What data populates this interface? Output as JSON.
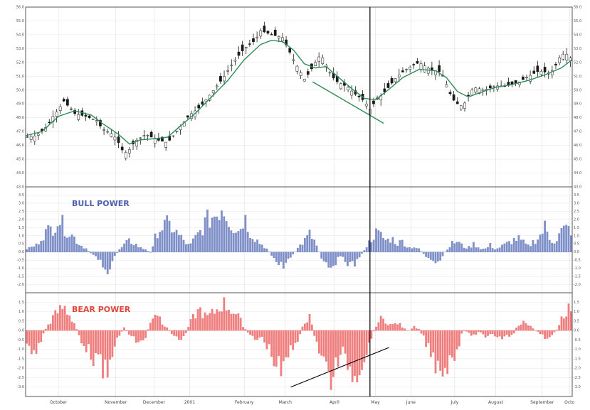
{
  "colors": {
    "background": "#ffffff",
    "frame": "#555555",
    "grid": "#dddddd",
    "candle": "#1a1a1a",
    "moving_average": "#2e8b57",
    "bull": "#7f8fc8",
    "bear": "#ef7e7e",
    "bull_label": "#4f5fb0",
    "bear_label": "#e0473b",
    "cursor": "#000000",
    "trendline_price": "#2e8b57",
    "trendline_bear": "#000000"
  },
  "chart_data": [
    {
      "type": "candlestick",
      "panel": "price",
      "title": "",
      "months": [
        "October",
        "November",
        "December",
        "2001",
        "February",
        "March",
        "April",
        "May",
        "June",
        "July",
        "August",
        "September",
        "Octo"
      ],
      "x_domain": [
        0,
        100
      ],
      "month_positions": [
        6,
        16.5,
        23.5,
        30,
        40,
        47.5,
        56.5,
        64,
        70.5,
        78.5,
        86,
        94.5,
        99.5
      ],
      "ylim": [
        43,
        56
      ],
      "y_ticks": [
        43,
        44,
        45,
        46,
        47,
        48,
        49,
        50,
        51,
        52,
        53,
        54,
        55,
        56
      ],
      "y_tick_labels": [
        "43.0",
        "44.0",
        "45.0",
        "46.0",
        "47.0",
        "48.0",
        "49.0",
        "50.0",
        "51.0",
        "52.0",
        "53.0",
        "54.0",
        "55.0",
        "56.0"
      ],
      "close_path": [
        [
          0,
          46.6
        ],
        [
          2,
          46.7
        ],
        [
          4,
          47.4
        ],
        [
          5,
          48.1
        ],
        [
          6,
          48.6
        ],
        [
          7,
          49.2
        ],
        [
          9,
          48.3
        ],
        [
          11,
          48.1
        ],
        [
          13,
          47.8
        ],
        [
          14,
          47.2
        ],
        [
          16,
          46.8
        ],
        [
          17,
          46.2
        ],
        [
          18,
          45.4
        ],
        [
          19,
          45.7
        ],
        [
          20,
          46.3
        ],
        [
          22,
          46.8
        ],
        [
          24,
          46.4
        ],
        [
          26,
          46.2
        ],
        [
          28,
          47.2
        ],
        [
          30,
          48.2
        ],
        [
          32,
          48.8
        ],
        [
          34,
          49.8
        ],
        [
          36,
          50.8
        ],
        [
          38,
          52.0
        ],
        [
          40,
          53.0
        ],
        [
          42,
          53.6
        ],
        [
          43,
          54.3
        ],
        [
          45,
          54.0
        ],
        [
          47,
          53.8
        ],
        [
          49,
          52.2
        ],
        [
          51,
          50.8
        ],
        [
          52,
          51.3
        ],
        [
          53,
          52.0
        ],
        [
          54,
          52.6
        ],
        [
          55,
          51.8
        ],
        [
          56,
          51.0
        ],
        [
          57,
          50.6
        ],
        [
          59,
          50.2
        ],
        [
          60,
          49.8
        ],
        [
          62,
          49.2
        ],
        [
          63,
          48.6
        ],
        [
          64,
          49.2
        ],
        [
          66,
          50.0
        ],
        [
          68,
          51.0
        ],
        [
          70,
          51.6
        ],
        [
          72,
          52.0
        ],
        [
          74,
          51.5
        ],
        [
          76,
          51.3
        ],
        [
          77,
          50.4
        ],
        [
          78,
          49.4
        ],
        [
          79,
          49.0
        ],
        [
          80,
          48.8
        ],
        [
          81,
          49.6
        ],
        [
          82,
          50.2
        ],
        [
          84,
          50.0
        ],
        [
          86,
          50.3
        ],
        [
          88,
          50.3
        ],
        [
          90,
          50.5
        ],
        [
          92,
          51.0
        ],
        [
          94,
          51.4
        ],
        [
          96,
          51.2
        ],
        [
          97,
          51.8
        ],
        [
          98,
          52.6
        ],
        [
          99,
          52.6
        ],
        [
          100,
          52.2
        ]
      ],
      "ma_path": [
        [
          0,
          46.7
        ],
        [
          3,
          47.0
        ],
        [
          6,
          48.1
        ],
        [
          9,
          48.5
        ],
        [
          12,
          48.2
        ],
        [
          14,
          47.6
        ],
        [
          17,
          46.8
        ],
        [
          19,
          46.1
        ],
        [
          21,
          46.4
        ],
        [
          24,
          46.5
        ],
        [
          26,
          46.6
        ],
        [
          28,
          47.3
        ],
        [
          31,
          48.3
        ],
        [
          34,
          49.5
        ],
        [
          37,
          50.7
        ],
        [
          40,
          52.2
        ],
        [
          43,
          53.3
        ],
        [
          45,
          53.6
        ],
        [
          47,
          53.5
        ],
        [
          49,
          52.9
        ],
        [
          51,
          51.9
        ],
        [
          53,
          51.6
        ],
        [
          55,
          51.7
        ],
        [
          57,
          51.0
        ],
        [
          60,
          50.0
        ],
        [
          62,
          49.4
        ],
        [
          64,
          49.3
        ],
        [
          66,
          49.9
        ],
        [
          69,
          50.9
        ],
        [
          72,
          51.5
        ],
        [
          75,
          51.4
        ],
        [
          77,
          50.9
        ],
        [
          79,
          49.9
        ],
        [
          81,
          49.5
        ],
        [
          83,
          49.8
        ],
        [
          86,
          50.2
        ],
        [
          89,
          50.4
        ],
        [
          92,
          50.7
        ],
        [
          95,
          51.1
        ],
        [
          98,
          51.6
        ],
        [
          100,
          52.2
        ]
      ],
      "trendlines": [
        [
          [
            52.5,
            50.6
          ],
          [
            65.5,
            47.6
          ]
        ]
      ],
      "cursor_x": 63
    },
    {
      "type": "bar",
      "panel": "indicator",
      "series_name": "BULL POWER",
      "ylim": [
        -2.5,
        4.0
      ],
      "zero": 0,
      "y_ticks": [
        -2.0,
        -1.5,
        -1.0,
        -0.5,
        0.0,
        0.5,
        1.0,
        1.5,
        2.0,
        2.5,
        3.0,
        3.5
      ],
      "y_tick_labels": [
        "-2.0",
        "-1.5",
        "-1.0",
        "-0.5",
        "0.0",
        "0.5",
        "1.0",
        "1.5",
        "2.0",
        "2.5",
        "3.0",
        "3.5"
      ],
      "x_domain": [
        0,
        100
      ],
      "profile": [
        [
          0,
          0.2
        ],
        [
          2,
          0.5
        ],
        [
          3,
          1.2
        ],
        [
          5,
          1.8
        ],
        [
          6,
          2.5
        ],
        [
          7,
          1.8
        ],
        [
          8,
          1.4
        ],
        [
          9,
          1.0
        ],
        [
          10,
          0.5
        ],
        [
          11,
          0.3
        ],
        [
          12,
          -0.1
        ],
        [
          13,
          -0.3
        ],
        [
          14,
          -0.8
        ],
        [
          15,
          -1.4
        ],
        [
          15.5,
          -2.0
        ],
        [
          16,
          -0.5
        ],
        [
          17,
          0.1
        ],
        [
          18,
          0.5
        ],
        [
          19,
          0.8
        ],
        [
          20,
          0.6
        ],
        [
          21,
          0.3
        ],
        [
          22,
          0.2
        ],
        [
          23,
          -0.1
        ],
        [
          24,
          1.5
        ],
        [
          25,
          1.8
        ],
        [
          26,
          2.0
        ],
        [
          27,
          1.7
        ],
        [
          28,
          1.2
        ],
        [
          29,
          0.8
        ],
        [
          30,
          0.4
        ],
        [
          31,
          1.0
        ],
        [
          32,
          1.5
        ],
        [
          33,
          2.2
        ],
        [
          34,
          2.5
        ],
        [
          35,
          2.8
        ],
        [
          36,
          3.4
        ],
        [
          37,
          2.5
        ],
        [
          38,
          1.8
        ],
        [
          39,
          1.5
        ],
        [
          40,
          2.6
        ],
        [
          41,
          1.5
        ],
        [
          42,
          1.0
        ],
        [
          43,
          0.6
        ],
        [
          44,
          0.3
        ],
        [
          45,
          -0.2
        ],
        [
          46,
          -0.8
        ],
        [
          47,
          -1.0
        ],
        [
          48,
          -0.6
        ],
        [
          49,
          -0.2
        ],
        [
          50,
          0.4
        ],
        [
          51,
          0.8
        ],
        [
          52,
          1.3
        ],
        [
          53,
          0.7
        ],
        [
          54,
          -0.3
        ],
        [
          55,
          -0.8
        ],
        [
          56,
          -1.0
        ],
        [
          57,
          -0.6
        ],
        [
          58,
          -0.3
        ],
        [
          59,
          -0.8
        ],
        [
          60,
          -1.0
        ],
        [
          61,
          -0.4
        ],
        [
          62,
          0.2
        ],
        [
          63,
          0.8
        ],
        [
          64,
          1.4
        ],
        [
          65,
          1.2
        ],
        [
          66,
          0.8
        ],
        [
          67,
          1.0
        ],
        [
          68,
          0.6
        ],
        [
          69,
          0.8
        ],
        [
          70,
          0.3
        ],
        [
          71,
          0.4
        ],
        [
          72,
          0.2
        ],
        [
          73,
          -0.2
        ],
        [
          74,
          -0.6
        ],
        [
          75,
          -1.1
        ],
        [
          76,
          -0.6
        ],
        [
          77,
          0.2
        ],
        [
          78,
          0.6
        ],
        [
          79,
          0.8
        ],
        [
          80,
          0.4
        ],
        [
          81,
          0.3
        ],
        [
          82,
          0.6
        ],
        [
          83,
          0.3
        ],
        [
          84,
          0.2
        ],
        [
          85,
          0.5
        ],
        [
          86,
          0.2
        ],
        [
          87,
          0.4
        ],
        [
          88,
          0.6
        ],
        [
          89,
          0.8
        ],
        [
          90,
          1.0
        ],
        [
          91,
          0.7
        ],
        [
          92,
          0.4
        ],
        [
          93,
          0.8
        ],
        [
          94,
          1.1
        ],
        [
          95,
          1.8
        ],
        [
          96,
          0.9
        ],
        [
          97,
          0.8
        ],
        [
          98,
          1.5
        ],
        [
          99,
          1.7
        ],
        [
          100,
          1.6
        ]
      ],
      "cursor_x": 63
    },
    {
      "type": "bar",
      "panel": "indicator",
      "series_name": "BEAR POWER",
      "ylim": [
        -3.5,
        2.0
      ],
      "zero": 0,
      "y_ticks": [
        -3.0,
        -2.5,
        -2.0,
        -1.5,
        -1.0,
        -0.5,
        0.0,
        0.5,
        1.0,
        1.5
      ],
      "y_tick_labels": [
        "-3.0",
        "-2.5",
        "-2.0",
        "-1.5",
        "-1.0",
        "-0.5",
        "0.0",
        "0.5",
        "1.0",
        "1.5"
      ],
      "x_domain": [
        0,
        100
      ],
      "profile": [
        [
          0,
          -0.5
        ],
        [
          1,
          -1.2
        ],
        [
          2,
          -1.4
        ],
        [
          3,
          -0.4
        ],
        [
          4,
          0.3
        ],
        [
          5,
          0.8
        ],
        [
          6,
          1.2
        ],
        [
          7,
          1.5
        ],
        [
          8,
          1.0
        ],
        [
          9,
          0.4
        ],
        [
          10,
          -0.5
        ],
        [
          11,
          -1.0
        ],
        [
          12,
          -1.5
        ],
        [
          13,
          -1.9
        ],
        [
          14,
          -2.4
        ],
        [
          15,
          -3.0
        ],
        [
          16,
          -1.0
        ],
        [
          17,
          -0.5
        ],
        [
          18,
          0.2
        ],
        [
          19,
          -0.3
        ],
        [
          20,
          -0.6
        ],
        [
          21,
          -0.8
        ],
        [
          22,
          -0.4
        ],
        [
          23,
          0.8
        ],
        [
          24,
          1.2
        ],
        [
          25,
          0.5
        ],
        [
          26,
          0.2
        ],
        [
          27,
          -0.3
        ],
        [
          28,
          -0.6
        ],
        [
          29,
          -0.4
        ],
        [
          30,
          0.4
        ],
        [
          31,
          1.0
        ],
        [
          32,
          1.3
        ],
        [
          33,
          0.8
        ],
        [
          34,
          1.0
        ],
        [
          35,
          1.3
        ],
        [
          36,
          1.7
        ],
        [
          37,
          1.5
        ],
        [
          38,
          1.2
        ],
        [
          39,
          0.8
        ],
        [
          40,
          0.2
        ],
        [
          41,
          -0.3
        ],
        [
          42,
          -0.6
        ],
        [
          43,
          -0.4
        ],
        [
          44,
          -0.8
        ],
        [
          45,
          -1.5
        ],
        [
          46,
          -2.2
        ],
        [
          47,
          -2.8
        ],
        [
          48,
          -1.5
        ],
        [
          49,
          -1.0
        ],
        [
          50,
          -0.4
        ],
        [
          51,
          0.6
        ],
        [
          52,
          0.8
        ],
        [
          53,
          -0.5
        ],
        [
          54,
          -1.5
        ],
        [
          55,
          -2.4
        ],
        [
          56,
          -3.0
        ],
        [
          57,
          -2.0
        ],
        [
          58,
          -1.5
        ],
        [
          59,
          -2.0
        ],
        [
          60,
          -2.8
        ],
        [
          61,
          -2.3
        ],
        [
          62,
          -1.6
        ],
        [
          63,
          -0.8
        ],
        [
          64,
          0.3
        ],
        [
          65,
          0.7
        ],
        [
          66,
          0.6
        ],
        [
          67,
          0.3
        ],
        [
          68,
          0.5
        ],
        [
          69,
          0.2
        ],
        [
          70,
          -0.1
        ],
        [
          71,
          0.3
        ],
        [
          72,
          0.1
        ],
        [
          73,
          -0.6
        ],
        [
          74,
          -1.4
        ],
        [
          75,
          -2.0
        ],
        [
          76,
          -2.2
        ],
        [
          77,
          -2.3
        ],
        [
          78,
          -1.6
        ],
        [
          79,
          -1.2
        ],
        [
          80,
          0.1
        ],
        [
          81,
          -0.2
        ],
        [
          82,
          -0.3
        ],
        [
          83,
          -0.1
        ],
        [
          84,
          -0.4
        ],
        [
          85,
          -0.2
        ],
        [
          86,
          -0.3
        ],
        [
          87,
          -0.5
        ],
        [
          88,
          -0.2
        ],
        [
          89,
          -0.4
        ],
        [
          90,
          0.3
        ],
        [
          91,
          0.6
        ],
        [
          92,
          0.3
        ],
        [
          93,
          0.1
        ],
        [
          94,
          -0.2
        ],
        [
          95,
          -0.5
        ],
        [
          96,
          -0.3
        ],
        [
          97,
          -0.1
        ],
        [
          98,
          0.8
        ],
        [
          99,
          1.3
        ],
        [
          100,
          1.5
        ]
      ],
      "trendlines": [
        [
          [
            48.5,
            -3.0
          ],
          [
            66.5,
            -0.9
          ]
        ]
      ],
      "cursor_x": 63
    }
  ]
}
